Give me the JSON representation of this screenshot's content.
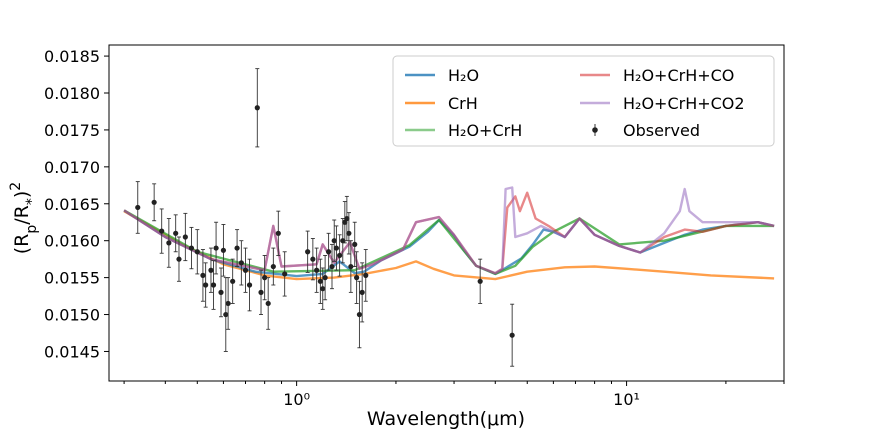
{
  "chart_data": {
    "type": "line",
    "title": "",
    "xlabel": "Wavelength(μm)",
    "ylabel": "(Rp/R*)²",
    "xscale": "log",
    "xlim": [
      0.27,
      30
    ],
    "ylim": [
      0.0141,
      0.01865
    ],
    "x_ticks": [
      {
        "value": 1,
        "label": "10⁰"
      },
      {
        "value": 10,
        "label": "10¹"
      }
    ],
    "y_ticks": [
      {
        "value": 0.0145,
        "label": "0.0145"
      },
      {
        "value": 0.015,
        "label": "0.0150"
      },
      {
        "value": 0.0155,
        "label": "0.0155"
      },
      {
        "value": 0.016,
        "label": "0.0160"
      },
      {
        "value": 0.0165,
        "label": "0.0165"
      },
      {
        "value": 0.017,
        "label": "0.0170"
      },
      {
        "value": 0.0175,
        "label": "0.0175"
      },
      {
        "value": 0.018,
        "label": "0.0180"
      },
      {
        "value": 0.0185,
        "label": "0.0185"
      }
    ],
    "legend_position": "top-right",
    "legend": [
      {
        "label": "H₂O",
        "color": "#1f77b4"
      },
      {
        "label": "CrH",
        "color": "#ff7f0e"
      },
      {
        "label": "H₂O+CrH",
        "color": "#2ca02c"
      },
      {
        "label": "H₂O+CrH+CO",
        "color": "#d62728"
      },
      {
        "label": "H₂O+CrH+CO2",
        "color": "#9467bd"
      },
      {
        "label": "Observed",
        "color": "#000000"
      }
    ],
    "series": [
      {
        "name": "H₂O",
        "color": "#1f77b4",
        "points": [
          [
            0.3,
            0.01641
          ],
          [
            0.4,
            0.01605
          ],
          [
            0.55,
            0.01575
          ],
          [
            0.75,
            0.01558
          ],
          [
            1.0,
            0.01552
          ],
          [
            1.2,
            0.01555
          ],
          [
            1.35,
            0.01572
          ],
          [
            1.5,
            0.01556
          ],
          [
            1.6,
            0.01558
          ],
          [
            1.8,
            0.01573
          ],
          [
            2.2,
            0.01592
          ],
          [
            2.5,
            0.01612
          ],
          [
            2.7,
            0.01628
          ],
          [
            3.0,
            0.01607
          ],
          [
            3.2,
            0.01588
          ],
          [
            3.5,
            0.01566
          ],
          [
            4.0,
            0.01555
          ],
          [
            4.3,
            0.01563
          ],
          [
            4.8,
            0.01576
          ],
          [
            5.2,
            0.01595
          ],
          [
            5.6,
            0.01615
          ],
          [
            6.0,
            0.01612
          ],
          [
            6.5,
            0.01605
          ],
          [
            7.2,
            0.0163
          ],
          [
            8.0,
            0.01608
          ],
          [
            9.5,
            0.01593
          ],
          [
            11,
            0.01584
          ],
          [
            13,
            0.01597
          ],
          [
            15,
            0.01608
          ],
          [
            17,
            0.01615
          ],
          [
            20,
            0.0162
          ],
          [
            25,
            0.01625
          ],
          [
            28,
            0.0162
          ]
        ]
      },
      {
        "name": "CrH",
        "color": "#ff7f0e",
        "points": [
          [
            0.3,
            0.0164
          ],
          [
            0.45,
            0.01595
          ],
          [
            0.6,
            0.01568
          ],
          [
            0.8,
            0.01553
          ],
          [
            1.0,
            0.01548
          ],
          [
            1.3,
            0.0155
          ],
          [
            1.6,
            0.01555
          ],
          [
            2.0,
            0.01563
          ],
          [
            2.3,
            0.01572
          ],
          [
            2.6,
            0.01562
          ],
          [
            3.0,
            0.01553
          ],
          [
            4.0,
            0.01548
          ],
          [
            5.0,
            0.01558
          ],
          [
            6.5,
            0.01564
          ],
          [
            8.0,
            0.01565
          ],
          [
            10,
            0.01562
          ],
          [
            13,
            0.01558
          ],
          [
            18,
            0.01553
          ],
          [
            28,
            0.01549
          ]
        ]
      },
      {
        "name": "H₂O+CrH",
        "color": "#2ca02c",
        "points": [
          [
            0.3,
            0.01641
          ],
          [
            0.5,
            0.01585
          ],
          [
            0.85,
            0.01558
          ],
          [
            1.5,
            0.0156
          ],
          [
            2.2,
            0.01594
          ],
          [
            2.7,
            0.01628
          ],
          [
            3.5,
            0.01566
          ],
          [
            4.0,
            0.01555
          ],
          [
            4.6,
            0.01566
          ],
          [
            5.2,
            0.01592
          ],
          [
            6.0,
            0.01612
          ],
          [
            7.2,
            0.0163
          ],
          [
            9.5,
            0.01595
          ],
          [
            13,
            0.016
          ],
          [
            20,
            0.0162
          ],
          [
            28,
            0.0162
          ]
        ]
      },
      {
        "name": "H₂O+CrH+CO",
        "color": "#d62728",
        "points": [
          [
            0.3,
            0.01641
          ],
          [
            0.4,
            0.01605
          ],
          [
            0.55,
            0.01575
          ],
          [
            0.8,
            0.0156
          ],
          [
            0.85,
            0.0162
          ],
          [
            0.9,
            0.01565
          ],
          [
            1.15,
            0.01568
          ],
          [
            1.2,
            0.01595
          ],
          [
            1.3,
            0.0157
          ],
          [
            1.45,
            0.01598
          ],
          [
            1.55,
            0.01562
          ],
          [
            1.7,
            0.01568
          ],
          [
            2.1,
            0.01588
          ],
          [
            2.3,
            0.01625
          ],
          [
            2.7,
            0.01632
          ],
          [
            3.0,
            0.01608
          ],
          [
            3.5,
            0.01566
          ],
          [
            4.0,
            0.01556
          ],
          [
            4.2,
            0.01562
          ],
          [
            4.35,
            0.01645
          ],
          [
            4.6,
            0.0166
          ],
          [
            4.75,
            0.0164
          ],
          [
            5.0,
            0.01665
          ],
          [
            5.3,
            0.0163
          ],
          [
            5.8,
            0.0162
          ],
          [
            6.5,
            0.01605
          ],
          [
            7.2,
            0.0163
          ],
          [
            8.0,
            0.01608
          ],
          [
            9.5,
            0.01593
          ],
          [
            11,
            0.01584
          ],
          [
            13,
            0.01605
          ],
          [
            15,
            0.01615
          ],
          [
            17,
            0.01612
          ],
          [
            20,
            0.0162
          ],
          [
            25,
            0.01625
          ],
          [
            28,
            0.0162
          ]
        ]
      },
      {
        "name": "H₂O+CrH+CO2",
        "color": "#9467bd",
        "points": [
          [
            0.3,
            0.01641
          ],
          [
            0.4,
            0.01605
          ],
          [
            0.55,
            0.01575
          ],
          [
            0.8,
            0.0156
          ],
          [
            0.85,
            0.0162
          ],
          [
            0.9,
            0.01565
          ],
          [
            1.15,
            0.01568
          ],
          [
            1.2,
            0.01595
          ],
          [
            1.3,
            0.0157
          ],
          [
            1.45,
            0.01598
          ],
          [
            1.55,
            0.01562
          ],
          [
            1.7,
            0.01568
          ],
          [
            2.1,
            0.01588
          ],
          [
            2.3,
            0.01625
          ],
          [
            2.7,
            0.01632
          ],
          [
            3.0,
            0.01608
          ],
          [
            3.5,
            0.01566
          ],
          [
            4.0,
            0.01556
          ],
          [
            4.2,
            0.01562
          ],
          [
            4.3,
            0.0167
          ],
          [
            4.5,
            0.01672
          ],
          [
            4.6,
            0.01605
          ],
          [
            5.0,
            0.0161
          ],
          [
            5.5,
            0.0162
          ],
          [
            6.5,
            0.01605
          ],
          [
            7.2,
            0.0163
          ],
          [
            8.0,
            0.01608
          ],
          [
            9.5,
            0.01593
          ],
          [
            11,
            0.01584
          ],
          [
            13,
            0.0161
          ],
          [
            14.5,
            0.0164
          ],
          [
            15,
            0.0167
          ],
          [
            15.5,
            0.0164
          ],
          [
            17,
            0.01625
          ],
          [
            20,
            0.01625
          ],
          [
            25,
            0.01625
          ],
          [
            28,
            0.0162
          ]
        ]
      }
    ],
    "observed": [
      {
        "x": 0.33,
        "y": 0.01645,
        "err": 0.00035
      },
      {
        "x": 0.37,
        "y": 0.01652,
        "err": 0.00025
      },
      {
        "x": 0.39,
        "y": 0.01613,
        "err": 0.0003
      },
      {
        "x": 0.41,
        "y": 0.01597,
        "err": 0.00033
      },
      {
        "x": 0.43,
        "y": 0.0161,
        "err": 0.00025
      },
      {
        "x": 0.44,
        "y": 0.01575,
        "err": 0.0003
      },
      {
        "x": 0.46,
        "y": 0.01605,
        "err": 0.00032
      },
      {
        "x": 0.48,
        "y": 0.0159,
        "err": 0.00028
      },
      {
        "x": 0.5,
        "y": 0.01585,
        "err": 0.0003
      },
      {
        "x": 0.52,
        "y": 0.01553,
        "err": 0.00035
      },
      {
        "x": 0.53,
        "y": 0.0154,
        "err": 0.0003
      },
      {
        "x": 0.55,
        "y": 0.0156,
        "err": 0.0003
      },
      {
        "x": 0.56,
        "y": 0.0154,
        "err": 0.00033
      },
      {
        "x": 0.57,
        "y": 0.0159,
        "err": 0.00035
      },
      {
        "x": 0.59,
        "y": 0.0153,
        "err": 0.00033
      },
      {
        "x": 0.6,
        "y": 0.01587,
        "err": 0.00035
      },
      {
        "x": 0.61,
        "y": 0.015,
        "err": 0.0005
      },
      {
        "x": 0.62,
        "y": 0.01515,
        "err": 0.00035
      },
      {
        "x": 0.64,
        "y": 0.01545,
        "err": 0.0003
      },
      {
        "x": 0.66,
        "y": 0.0159,
        "err": 0.00025
      },
      {
        "x": 0.68,
        "y": 0.0157,
        "err": 0.0003
      },
      {
        "x": 0.7,
        "y": 0.0156,
        "err": 0.0003
      },
      {
        "x": 0.72,
        "y": 0.0154,
        "err": 0.00035
      },
      {
        "x": 0.76,
        "y": 0.0178,
        "err": 0.00053
      },
      {
        "x": 0.78,
        "y": 0.0153,
        "err": 0.0003
      },
      {
        "x": 0.8,
        "y": 0.0155,
        "err": 0.0003
      },
      {
        "x": 0.82,
        "y": 0.01515,
        "err": 0.00035
      },
      {
        "x": 0.85,
        "y": 0.01565,
        "err": 0.00025
      },
      {
        "x": 0.88,
        "y": 0.0161,
        "err": 0.0003
      },
      {
        "x": 0.92,
        "y": 0.01555,
        "err": 0.0003
      },
      {
        "x": 1.08,
        "y": 0.01585,
        "err": 0.00028
      },
      {
        "x": 1.12,
        "y": 0.01575,
        "err": 0.00028
      },
      {
        "x": 1.15,
        "y": 0.0156,
        "err": 0.0003
      },
      {
        "x": 1.18,
        "y": 0.01545,
        "err": 0.0003
      },
      {
        "x": 1.2,
        "y": 0.01535,
        "err": 0.00028
      },
      {
        "x": 1.22,
        "y": 0.0155,
        "err": 0.0003
      },
      {
        "x": 1.25,
        "y": 0.01585,
        "err": 0.00025
      },
      {
        "x": 1.28,
        "y": 0.01565,
        "err": 0.0003
      },
      {
        "x": 1.3,
        "y": 0.016,
        "err": 0.00028
      },
      {
        "x": 1.32,
        "y": 0.0159,
        "err": 0.0003
      },
      {
        "x": 1.35,
        "y": 0.0158,
        "err": 0.00028
      },
      {
        "x": 1.38,
        "y": 0.016,
        "err": 0.0003
      },
      {
        "x": 1.4,
        "y": 0.01625,
        "err": 0.00028
      },
      {
        "x": 1.42,
        "y": 0.0163,
        "err": 0.0003
      },
      {
        "x": 1.44,
        "y": 0.0161,
        "err": 0.00028
      },
      {
        "x": 1.46,
        "y": 0.01565,
        "err": 0.00035
      },
      {
        "x": 1.5,
        "y": 0.01595,
        "err": 0.0003
      },
      {
        "x": 1.52,
        "y": 0.0155,
        "err": 0.00035
      },
      {
        "x": 1.55,
        "y": 0.015,
        "err": 0.00045
      },
      {
        "x": 1.58,
        "y": 0.0153,
        "err": 0.0004
      },
      {
        "x": 1.62,
        "y": 0.01553,
        "err": 0.00035
      },
      {
        "x": 3.6,
        "y": 0.01545,
        "err": 0.0003
      },
      {
        "x": 4.5,
        "y": 0.01472,
        "err": 0.00042
      }
    ]
  }
}
